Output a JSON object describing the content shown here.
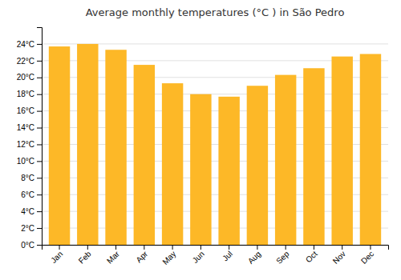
{
  "chart_data": {
    "type": "bar",
    "title": "Average monthly temperatures (°C ) in São Pedro",
    "categories": [
      "Jan",
      "Feb",
      "Mar",
      "Apr",
      "May",
      "Jun",
      "Jul",
      "Aug",
      "Sep",
      "Oct",
      "Nov",
      "Dec"
    ],
    "values": [
      23.7,
      24.0,
      23.3,
      21.5,
      19.3,
      18.0,
      17.7,
      19.0,
      20.3,
      21.1,
      22.5,
      22.8
    ],
    "color": "#FDB827",
    "ylim": [
      0,
      26
    ],
    "yticks": [
      {
        "value": 0,
        "label": "0°C"
      },
      {
        "value": 2,
        "label": "2°C"
      },
      {
        "value": 4,
        "label": "4°C"
      },
      {
        "value": 6,
        "label": "6°C"
      },
      {
        "value": 8,
        "label": "8°C"
      },
      {
        "value": 10,
        "label": "10°C"
      },
      {
        "value": 12,
        "label": "12°C"
      },
      {
        "value": 14,
        "label": "14°C"
      },
      {
        "value": 16,
        "label": "16°C"
      },
      {
        "value": 18,
        "label": "18°C"
      },
      {
        "value": 20,
        "label": "20°C"
      },
      {
        "value": 22,
        "label": "22°C"
      },
      {
        "value": 24,
        "label": "24°C"
      }
    ],
    "grid": true
  }
}
